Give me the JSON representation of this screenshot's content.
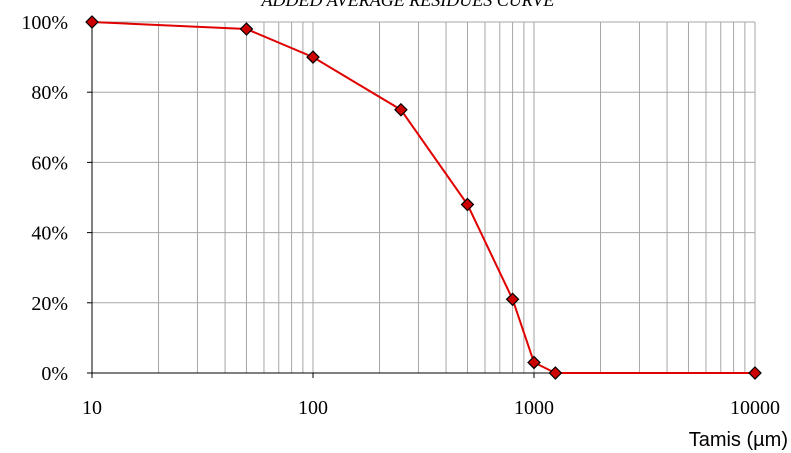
{
  "chart_data": {
    "type": "line",
    "title": "ADDED AVERAGE RESIDUES CURVE",
    "xlabel": "Tamis (µm)",
    "ylabel": "",
    "x_scale": "log",
    "xlim": [
      10,
      10000
    ],
    "ylim": [
      0,
      100
    ],
    "x_tick_labels": [
      "10",
      "100",
      "1000",
      "10000"
    ],
    "y_tick_labels": [
      "0%",
      "20%",
      "40%",
      "60%",
      "80%",
      "100%"
    ],
    "grid": true,
    "legend": "none",
    "series": [
      {
        "color": "#e00000",
        "marker": "diamond",
        "marker_fill": "#cc0000",
        "x": [
          10,
          50,
          100,
          250,
          500,
          800,
          1000,
          1250,
          10000
        ],
        "y": [
          100,
          98,
          90,
          75,
          48,
          21,
          3,
          0,
          0
        ]
      }
    ]
  }
}
